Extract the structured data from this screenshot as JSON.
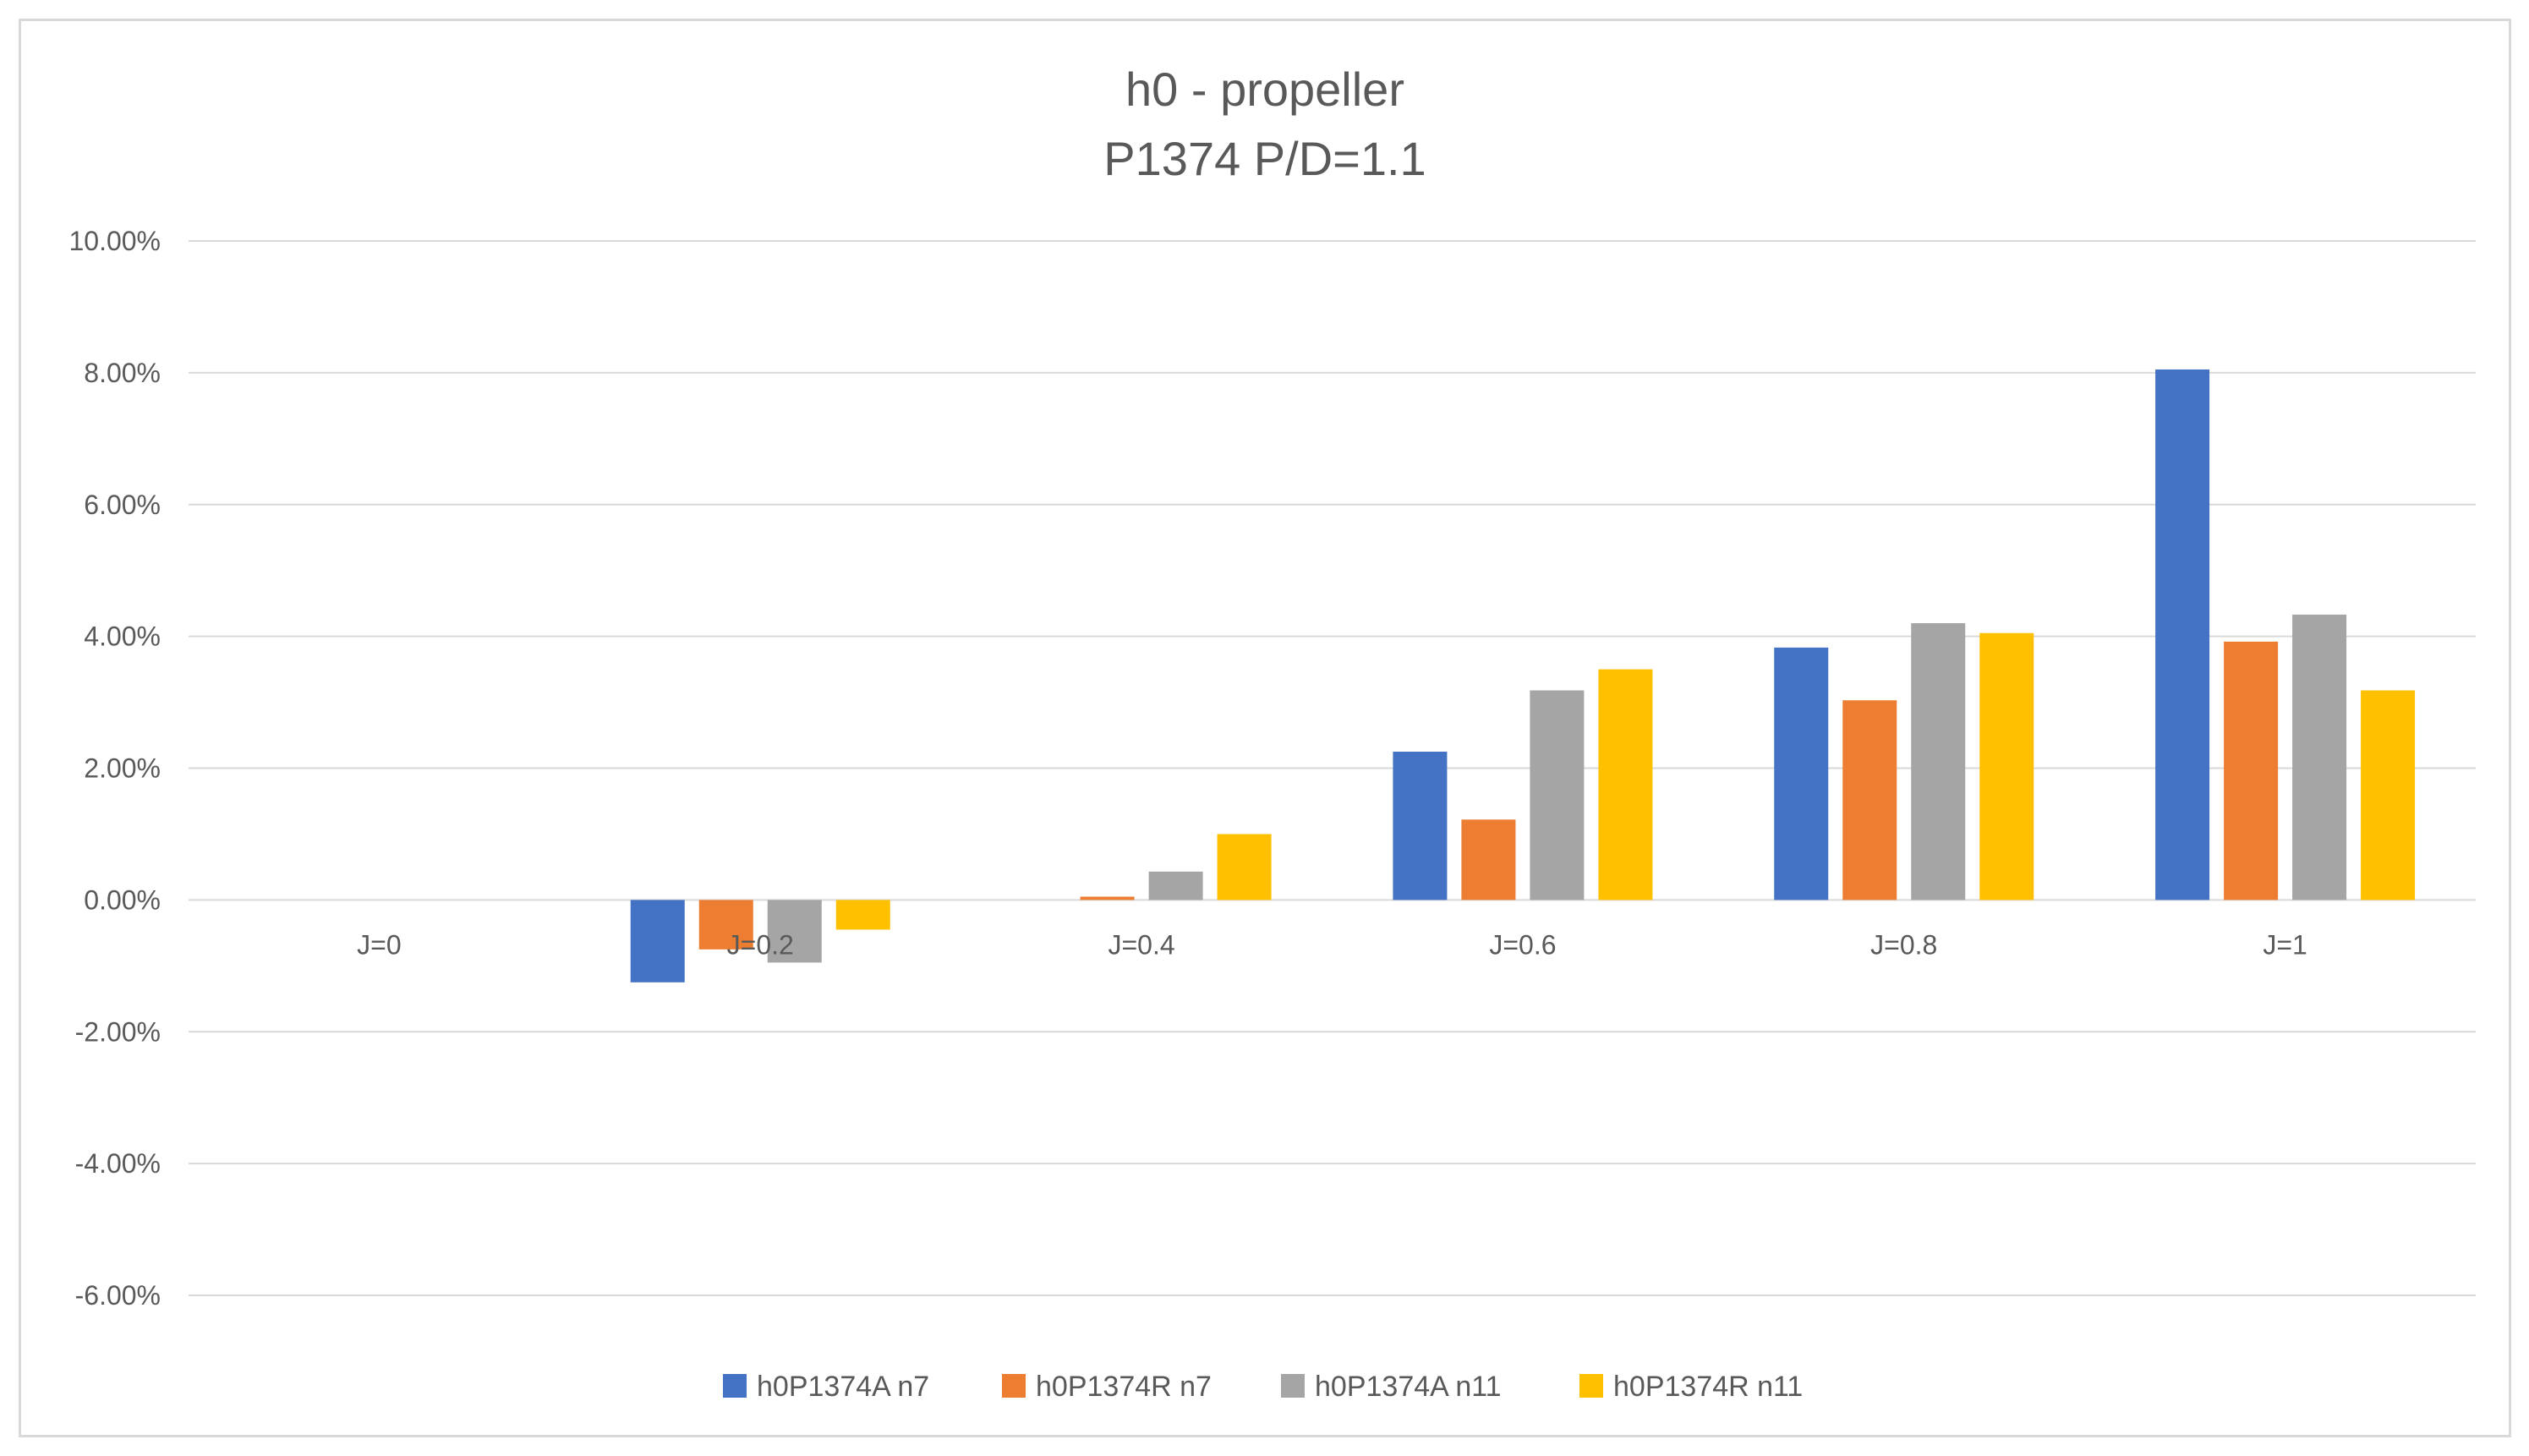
{
  "chart_data": {
    "type": "bar",
    "title": "h0 - propeller",
    "subtitle": "P1374 P/D=1.1",
    "xlabel": "",
    "ylabel": "",
    "categories": [
      "J=0",
      "J=0.2",
      "J=0.4",
      "J=0.6",
      "J=0.8",
      "J=1"
    ],
    "series": [
      {
        "name": "h0P1374A n7",
        "color": "#4472C4",
        "values": [
          0,
          -0.0125,
          0,
          0.0225,
          0.0383,
          0.0805
        ]
      },
      {
        "name": "h0P1374R n7",
        "color": "#ED7D31",
        "values": [
          0,
          -0.0075,
          0.0005,
          0.0122,
          0.0303,
          0.0392
        ]
      },
      {
        "name": "h0P1374A n11",
        "color": "#A5A5A5",
        "values": [
          0,
          -0.0095,
          0.0043,
          0.0318,
          0.042,
          0.0433
        ]
      },
      {
        "name": "h0P1374R n11",
        "color": "#FFC000",
        "values": [
          0,
          -0.0045,
          0.01,
          0.035,
          0.0405,
          0.0318
        ]
      }
    ],
    "ylim": [
      -0.06,
      0.1
    ],
    "yticks": [
      -0.06,
      -0.04,
      -0.02,
      0,
      0.02,
      0.04,
      0.06,
      0.08,
      0.1
    ],
    "ytick_labels": [
      "-6.00%",
      "-4.00%",
      "-2.00%",
      "0.00%",
      "2.00%",
      "4.00%",
      "6.00%",
      "8.00%",
      "10.00%"
    ],
    "grid": true,
    "legend_position": "bottom",
    "gridline_color": "#d9d9d9",
    "text_color": "#595959"
  }
}
